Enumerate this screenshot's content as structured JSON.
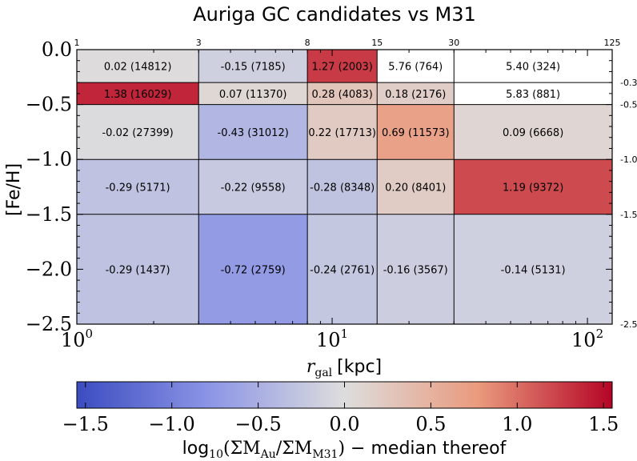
{
  "chart_data": {
    "type": "heatmap",
    "title": "Auriga GC candidates vs M31",
    "xlabel_main": "r",
    "xlabel_sub": "gal",
    "xlabel_unit": "[kpc]",
    "ylabel": "[Fe/H]",
    "x_scale": "log",
    "xlim": [
      1,
      125
    ],
    "ylim": [
      -2.5,
      0.0
    ],
    "x_bin_edges": [
      1,
      3,
      8,
      15,
      30,
      125
    ],
    "x_bin_edge_labels": [
      "1",
      "3",
      "8",
      "15",
      "30",
      "125"
    ],
    "y_bin_edges": [
      -2.5,
      -1.5,
      -1.0,
      -0.5,
      -0.3,
      0.0
    ],
    "y_bin_edge_labels": [
      "-2.5",
      "-1.5",
      "-1.0",
      "-0.5",
      "-0.3"
    ],
    "x_major_ticks": [
      {
        "value": 1,
        "base": "10",
        "exp": "0"
      },
      {
        "value": 10,
        "base": "10",
        "exp": "1"
      },
      {
        "value": 100,
        "base": "10",
        "exp": "2"
      }
    ],
    "y_ticks": [
      {
        "value": 0.0,
        "label": "0.0"
      },
      {
        "value": -0.5,
        "label": "−0.5"
      },
      {
        "value": -1.0,
        "label": "−1.0"
      },
      {
        "value": -1.5,
        "label": "−1.5"
      },
      {
        "value": -2.0,
        "label": "−2.0"
      },
      {
        "value": -2.5,
        "label": "−2.5"
      }
    ],
    "cells": [
      {
        "x": [
          1,
          3
        ],
        "y": [
          -0.3,
          0.0
        ],
        "value": 0.02,
        "count": 14812,
        "label": "0.02 (14812)"
      },
      {
        "x": [
          3,
          8
        ],
        "y": [
          -0.3,
          0.0
        ],
        "value": -0.15,
        "count": 7185,
        "label": "-0.15 (7185)"
      },
      {
        "x": [
          8,
          15
        ],
        "y": [
          -0.3,
          0.0
        ],
        "value": 1.27,
        "count": 2003,
        "label": "1.27 (2003)"
      },
      {
        "x": [
          15,
          30
        ],
        "y": [
          -0.3,
          0.0
        ],
        "value": 5.76,
        "count": 764,
        "label": "5.76 (764)"
      },
      {
        "x": [
          30,
          125
        ],
        "y": [
          -0.3,
          0.0
        ],
        "value": 5.4,
        "count": 324,
        "label": "5.40 (324)"
      },
      {
        "x": [
          1,
          3
        ],
        "y": [
          -0.5,
          -0.3
        ],
        "value": 1.38,
        "count": 16029,
        "label": "1.38 (16029)"
      },
      {
        "x": [
          3,
          8
        ],
        "y": [
          -0.5,
          -0.3
        ],
        "value": 0.07,
        "count": 11370,
        "label": "0.07 (11370)"
      },
      {
        "x": [
          8,
          15
        ],
        "y": [
          -0.5,
          -0.3
        ],
        "value": 0.28,
        "count": 4083,
        "label": "0.28 (4083)"
      },
      {
        "x": [
          15,
          30
        ],
        "y": [
          -0.5,
          -0.3
        ],
        "value": 0.18,
        "count": 2176,
        "label": "0.18 (2176)"
      },
      {
        "x": [
          30,
          125
        ],
        "y": [
          -0.5,
          -0.3
        ],
        "value": 5.83,
        "count": 881,
        "label": "5.83 (881)"
      },
      {
        "x": [
          1,
          3
        ],
        "y": [
          -1.0,
          -0.5
        ],
        "value": -0.02,
        "count": 27399,
        "label": "-0.02 (27399)"
      },
      {
        "x": [
          3,
          8
        ],
        "y": [
          -1.0,
          -0.5
        ],
        "value": -0.43,
        "count": 31012,
        "label": "-0.43 (31012)"
      },
      {
        "x": [
          8,
          15
        ],
        "y": [
          -1.0,
          -0.5
        ],
        "value": 0.22,
        "count": 17713,
        "label": "0.22 (17713)"
      },
      {
        "x": [
          15,
          30
        ],
        "y": [
          -1.0,
          -0.5
        ],
        "value": 0.69,
        "count": 11573,
        "label": "0.69 (11573)"
      },
      {
        "x": [
          30,
          125
        ],
        "y": [
          -1.0,
          -0.5
        ],
        "value": 0.09,
        "count": 6668,
        "label": "0.09 (6668)"
      },
      {
        "x": [
          1,
          3
        ],
        "y": [
          -1.5,
          -1.0
        ],
        "value": -0.29,
        "count": 5171,
        "label": "-0.29 (5171)"
      },
      {
        "x": [
          3,
          8
        ],
        "y": [
          -1.5,
          -1.0
        ],
        "value": -0.22,
        "count": 9558,
        "label": "-0.22 (9558)"
      },
      {
        "x": [
          8,
          15
        ],
        "y": [
          -1.5,
          -1.0
        ],
        "value": -0.28,
        "count": 8348,
        "label": "-0.28 (8348)"
      },
      {
        "x": [
          15,
          30
        ],
        "y": [
          -1.5,
          -1.0
        ],
        "value": 0.2,
        "count": 8401,
        "label": "0.20 (8401)"
      },
      {
        "x": [
          30,
          125
        ],
        "y": [
          -1.5,
          -1.0
        ],
        "value": 1.19,
        "count": 9372,
        "label": "1.19 (9372)"
      },
      {
        "x": [
          1,
          3
        ],
        "y": [
          -2.5,
          -1.5
        ],
        "value": -0.29,
        "count": 1437,
        "label": "-0.29 (1437)"
      },
      {
        "x": [
          3,
          8
        ],
        "y": [
          -2.5,
          -1.5
        ],
        "value": -0.72,
        "count": 2759,
        "label": "-0.72 (2759)"
      },
      {
        "x": [
          8,
          15
        ],
        "y": [
          -2.5,
          -1.5
        ],
        "value": -0.24,
        "count": 2761,
        "label": "-0.24 (2761)"
      },
      {
        "x": [
          15,
          30
        ],
        "y": [
          -2.5,
          -1.5
        ],
        "value": -0.16,
        "count": 3567,
        "label": "-0.16 (3567)"
      },
      {
        "x": [
          30,
          125
        ],
        "y": [
          -2.5,
          -1.5
        ],
        "value": -0.14,
        "count": 5131,
        "label": "-0.14 (5131)"
      }
    ],
    "colorbar": {
      "colormap": "coolwarm",
      "vmin": -1.55,
      "vmax": 1.55,
      "ticks": [
        {
          "value": -1.5,
          "label": "−1.5"
        },
        {
          "value": -1.0,
          "label": "−1.0"
        },
        {
          "value": -0.5,
          "label": "−0.5"
        },
        {
          "value": 0.0,
          "label": "0.0"
        },
        {
          "value": 0.5,
          "label": "0.5"
        },
        {
          "value": 1.0,
          "label": "1.0"
        },
        {
          "value": 1.5,
          "label": "1.5"
        }
      ],
      "label_prefix": "log",
      "label_prefix_sub": "10",
      "label_open": "(ΣM",
      "label_sub1": "Au",
      "label_mid": "/ΣM",
      "label_sub2": "M31",
      "label_close": ")",
      "label_suffix": " − median thereof"
    },
    "colors": {
      "cold": "#3b4cc0",
      "neutral": "#dddddd",
      "hot": "#b40426"
    },
    "grid": false,
    "legend": "none"
  }
}
